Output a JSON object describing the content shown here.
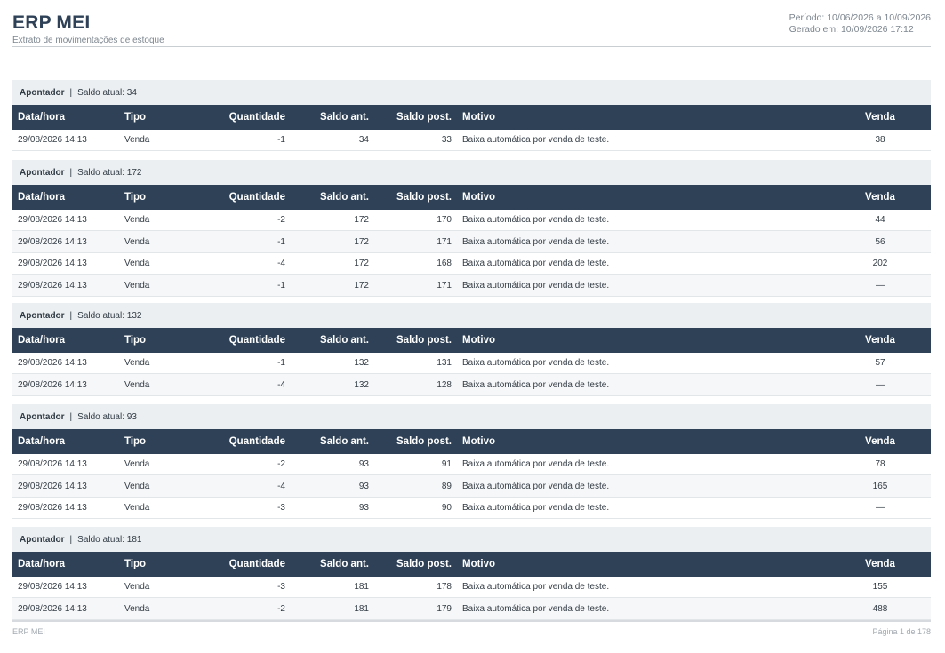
{
  "header": {
    "title": "ERP MEI",
    "subtitle": "Extrato de movimentações de estoque",
    "period": "Período: 10/06/2026 a 10/09/2026",
    "generated": "Gerado em: 10/09/2026 17:12"
  },
  "columns": [
    "Data/hora",
    "Tipo",
    "Quantidade",
    "Saldo ant.",
    "Saldo post.",
    "Motivo",
    "Venda"
  ],
  "sections": [
    {
      "product": "Apontador",
      "separator": "|",
      "balance": "Saldo atual: 34",
      "rows": [
        [
          "29/08/2026 14:13",
          "Venda",
          "-1",
          "34",
          "33",
          "Baixa automática por venda de teste.",
          "38"
        ]
      ]
    },
    {
      "product": "Apontador",
      "separator": "|",
      "balance": "Saldo atual: 172",
      "rows": [
        [
          "29/08/2026 14:13",
          "Venda",
          "-2",
          "172",
          "170",
          "Baixa automática por venda de teste.",
          "44"
        ],
        [
          "29/08/2026 14:13",
          "Venda",
          "-1",
          "172",
          "171",
          "Baixa automática por venda de teste.",
          "56"
        ],
        [
          "29/08/2026 14:13",
          "Venda",
          "-4",
          "172",
          "168",
          "Baixa automática por venda de teste.",
          "202"
        ],
        [
          "29/08/2026 14:13",
          "Venda",
          "-1",
          "172",
          "171",
          "Baixa automática por venda de teste.",
          "—"
        ]
      ]
    },
    {
      "product": "Apontador",
      "separator": "|",
      "balance": "Saldo atual: 132",
      "rows": [
        [
          "29/08/2026 14:13",
          "Venda",
          "-1",
          "132",
          "131",
          "Baixa automática por venda de teste.",
          "57"
        ],
        [
          "29/08/2026 14:13",
          "Venda",
          "-4",
          "132",
          "128",
          "Baixa automática por venda de teste.",
          "—"
        ]
      ]
    },
    {
      "product": "Apontador",
      "separator": "|",
      "balance": "Saldo atual: 93",
      "rows": [
        [
          "29/08/2026 14:13",
          "Venda",
          "-2",
          "93",
          "91",
          "Baixa automática por venda de teste.",
          "78"
        ],
        [
          "29/08/2026 14:13",
          "Venda",
          "-4",
          "93",
          "89",
          "Baixa automática por venda de teste.",
          "165"
        ],
        [
          "29/08/2026 14:13",
          "Venda",
          "-3",
          "93",
          "90",
          "Baixa automática por venda de teste.",
          "—"
        ]
      ]
    },
    {
      "product": "Apontador",
      "separator": "|",
      "balance": "Saldo atual: 181",
      "rows": [
        [
          "29/08/2026 14:13",
          "Venda",
          "-3",
          "181",
          "178",
          "Baixa automática por venda de teste.",
          "155"
        ],
        [
          "29/08/2026 14:13",
          "Venda",
          "-2",
          "181",
          "179",
          "Baixa automática por venda de teste.",
          "488"
        ]
      ]
    }
  ],
  "footer": {
    "left": "ERP MEI",
    "right": "Página 1 de 178"
  }
}
